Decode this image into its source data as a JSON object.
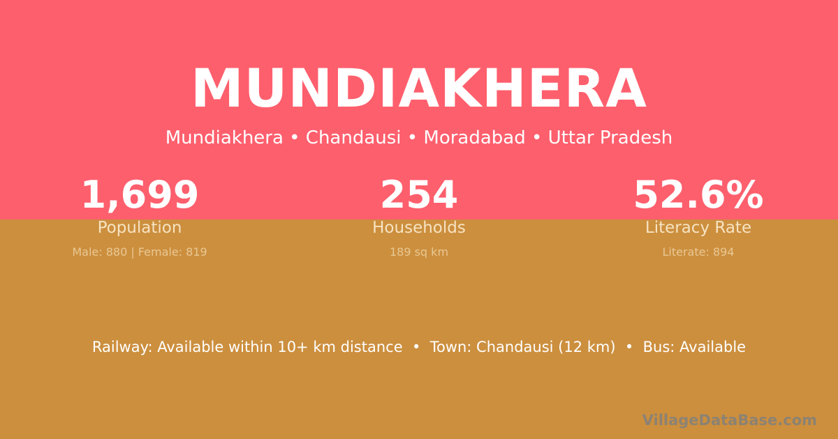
{
  "colors": {
    "top": "#fe5f6d",
    "bottom": "#cc8f3e"
  },
  "title": "MUNDIAKHERA",
  "subtitle": "Mundiakhera • Chandausi • Moradabad • Uttar Pradesh",
  "stats": [
    {
      "value": "1,699",
      "label": "Population",
      "sub": "Male: 880 | Female: 819"
    },
    {
      "value": "254",
      "label": "Households",
      "sub": "189 sq km"
    },
    {
      "value": "52.6%",
      "label": "Literacy Rate",
      "sub": "Literate: 894"
    }
  ],
  "info": "Railway: Available within 10+ km distance  •  Town: Chandausi (12 km)  •  Bus: Available",
  "watermark": "VillageDataBase.com"
}
